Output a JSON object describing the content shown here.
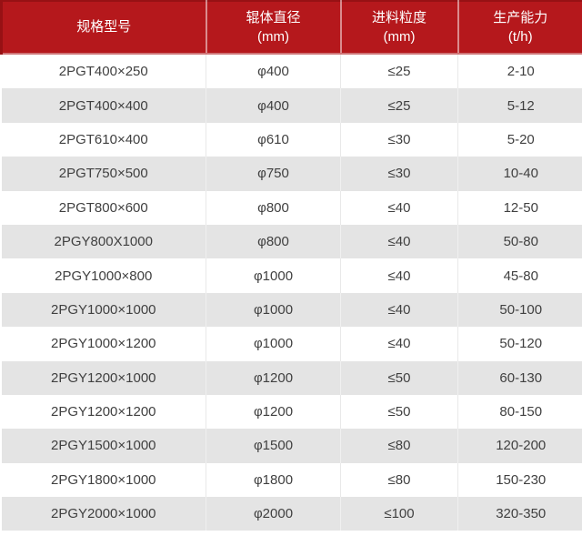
{
  "chart_data": {
    "type": "table",
    "columns": [
      {
        "label": "规格型号",
        "unit": ""
      },
      {
        "label": "辊体直径",
        "unit": "(mm)"
      },
      {
        "label": "进料粒度",
        "unit": "(mm)"
      },
      {
        "label": "生产能力",
        "unit": "(t/h)"
      }
    ],
    "rows": [
      [
        "2PGT400×250",
        "φ400",
        "≤25",
        "2-10"
      ],
      [
        "2PGT400×400",
        "φ400",
        "≤25",
        "5-12"
      ],
      [
        "2PGT610×400",
        "φ610",
        "≤30",
        "5-20"
      ],
      [
        "2PGT750×500",
        "φ750",
        "≤30",
        "10-40"
      ],
      [
        "2PGT800×600",
        "φ800",
        "≤40",
        "12-50"
      ],
      [
        "2PGY800X1000",
        "φ800",
        "≤40",
        "50-80"
      ],
      [
        "2PGY1000×800",
        "φ1000",
        "≤40",
        "45-80"
      ],
      [
        "2PGY1000×1000",
        "φ1000",
        "≤40",
        "50-100"
      ],
      [
        "2PGY1000×1200",
        "φ1000",
        "≤40",
        "50-120"
      ],
      [
        "2PGY1200×1000",
        "φ1200",
        "≤50",
        "60-130"
      ],
      [
        "2PGY1200×1200",
        "φ1200",
        "≤50",
        "80-150"
      ],
      [
        "2PGY1500×1000",
        "φ1500",
        "≤80",
        "120-200"
      ],
      [
        "2PGY1800×1000",
        "φ1800",
        "≤80",
        "150-230"
      ],
      [
        "2PGY2000×1000",
        "φ2000",
        "≤100",
        "320-350"
      ]
    ]
  },
  "colors": {
    "header_bg": "#b5181c",
    "header_border": "#971114",
    "header_divider": "rgba(255,255,255,0.5)",
    "header_text": "#ffffff",
    "row_even_bg": "#e4e4e4",
    "row_odd_bg": "#ffffff",
    "body_text": "#404040"
  }
}
